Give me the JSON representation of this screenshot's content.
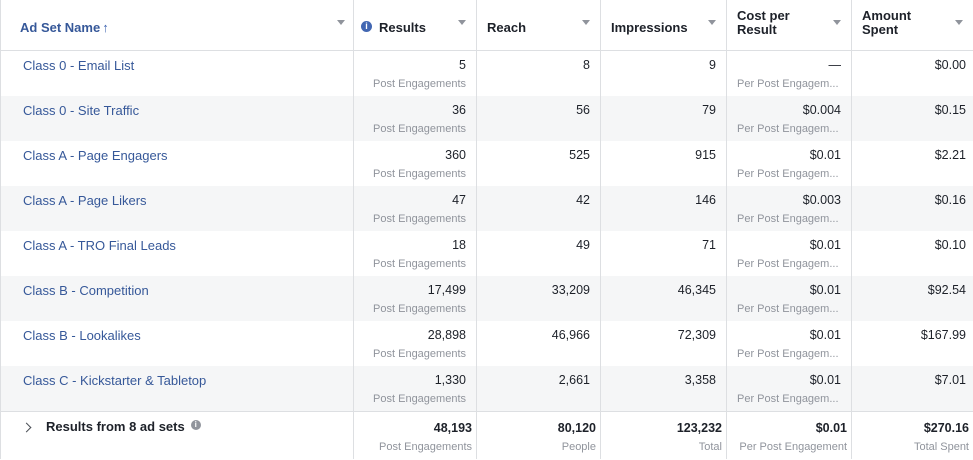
{
  "columns": {
    "name": "Ad Set Name",
    "sort_arrow": "↑",
    "results": "Results",
    "reach": "Reach",
    "impressions": "Impressions",
    "cost_line1": "Cost per",
    "cost_line2": "Result",
    "amount_line1": "Amount",
    "amount_line2": "Spent"
  },
  "rows": [
    {
      "name": "Class 0 - Email List",
      "results": "5",
      "results_sub": "Post Engagements",
      "reach": "8",
      "impressions": "9",
      "cost": "—",
      "cost_sub": "Per Post Engagem...",
      "spent": "$0.00"
    },
    {
      "name": "Class 0 - Site Traffic",
      "results": "36",
      "results_sub": "Post Engagements",
      "reach": "56",
      "impressions": "79",
      "cost": "$0.004",
      "cost_sub": "Per Post Engagem...",
      "spent": "$0.15"
    },
    {
      "name": "Class A - Page Engagers",
      "results": "360",
      "results_sub": "Post Engagements",
      "reach": "525",
      "impressions": "915",
      "cost": "$0.01",
      "cost_sub": "Per Post Engagem...",
      "spent": "$2.21"
    },
    {
      "name": "Class A - Page Likers",
      "results": "47",
      "results_sub": "Post Engagements",
      "reach": "42",
      "impressions": "146",
      "cost": "$0.003",
      "cost_sub": "Per Post Engagem...",
      "spent": "$0.16"
    },
    {
      "name": "Class A - TRO Final Leads",
      "results": "18",
      "results_sub": "Post Engagements",
      "reach": "49",
      "impressions": "71",
      "cost": "$0.01",
      "cost_sub": "Per Post Engagem...",
      "spent": "$0.10"
    },
    {
      "name": "Class B - Competition",
      "results": "17,499",
      "results_sub": "Post Engagements",
      "reach": "33,209",
      "impressions": "46,345",
      "cost": "$0.01",
      "cost_sub": "Per Post Engagem...",
      "spent": "$92.54"
    },
    {
      "name": "Class B - Lookalikes",
      "results": "28,898",
      "results_sub": "Post Engagements",
      "reach": "46,966",
      "impressions": "72,309",
      "cost": "$0.01",
      "cost_sub": "Per Post Engagem...",
      "spent": "$167.99"
    },
    {
      "name": "Class C - Kickstarter & Tabletop",
      "results": "1,330",
      "results_sub": "Post Engagements",
      "reach": "2,661",
      "impressions": "3,358",
      "cost": "$0.01",
      "cost_sub": "Per Post Engagem...",
      "spent": "$7.01"
    }
  ],
  "totals": {
    "label": "Results from 8 ad sets",
    "results": "48,193",
    "results_sub": "Post Engagements",
    "reach": "80,120",
    "reach_sub": "People",
    "impressions": "123,232",
    "impressions_sub": "Total",
    "cost": "$0.01",
    "cost_sub": "Per Post Engagement",
    "spent": "$270.16",
    "spent_sub": "Total Spent"
  },
  "colors": {
    "link": "#365899",
    "accent": "#4267b2",
    "muted": "#90949c",
    "alt_row": "#f5f6f7"
  }
}
